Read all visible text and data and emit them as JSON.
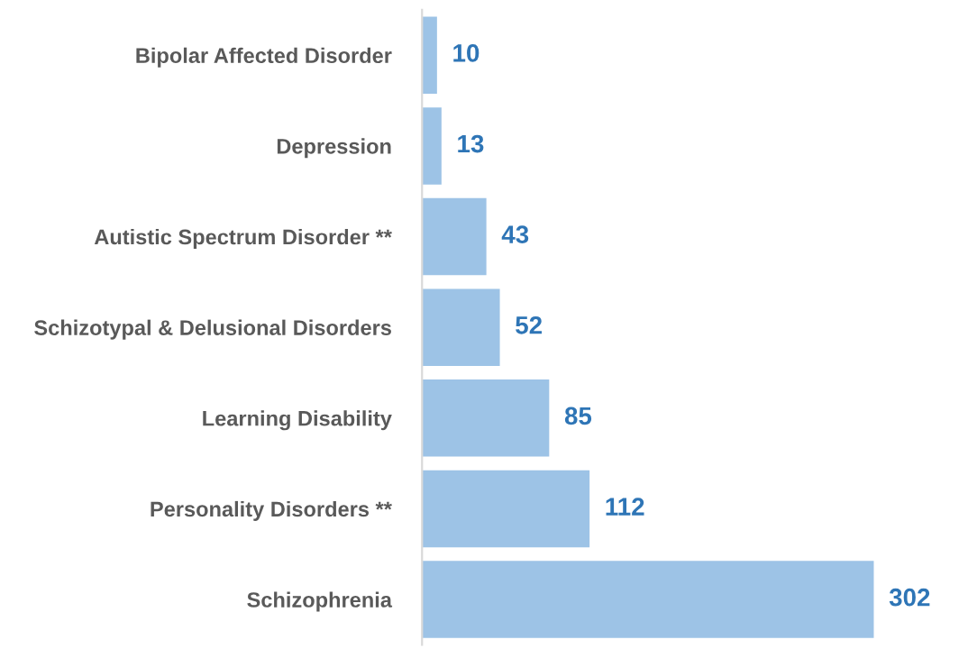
{
  "chart_data": {
    "type": "bar",
    "orientation": "horizontal",
    "categories": [
      "Bipolar Affected Disorder",
      "Depression",
      "Autistic Spectrum Disorder **",
      "Schizotypal & Delusional Disorders",
      "Learning Disability",
      "Personality Disorders **",
      "Schizophrenia"
    ],
    "values": [
      10,
      13,
      43,
      52,
      85,
      112,
      302
    ],
    "color": "#9dc3e6",
    "data_labels": true,
    "grid": false,
    "legend": false,
    "tick_labels": "y"
  }
}
